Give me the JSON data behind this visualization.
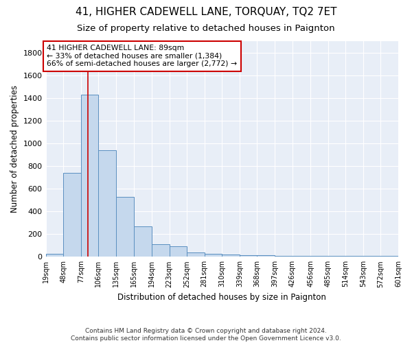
{
  "title": "41, HIGHER CADEWELL LANE, TORQUAY, TQ2 7ET",
  "subtitle": "Size of property relative to detached houses in Paignton",
  "xlabel": "Distribution of detached houses by size in Paignton",
  "ylabel": "Number of detached properties",
  "bin_edges": [
    19,
    48,
    77,
    106,
    135,
    165,
    194,
    223,
    252,
    281,
    310,
    368,
    426,
    514,
    601
  ],
  "tick_labels": [
    "19sqm",
    "48sqm",
    "77sqm",
    "106sqm",
    "135sqm",
    "165sqm",
    "194sqm",
    "223sqm",
    "252sqm",
    "281sqm",
    "310sqm",
    "339sqm",
    "368sqm",
    "397sqm",
    "426sqm",
    "456sqm",
    "485sqm",
    "514sqm",
    "543sqm",
    "572sqm",
    "601sqm"
  ],
  "all_bin_edges": [
    19,
    48,
    77,
    106,
    135,
    165,
    194,
    223,
    252,
    281,
    310,
    339,
    368,
    397,
    426,
    456,
    485,
    514,
    543,
    572,
    601
  ],
  "bar_heights": [
    25,
    740,
    1430,
    940,
    530,
    270,
    110,
    95,
    40,
    25,
    20,
    15,
    15,
    10,
    8,
    8,
    5,
    5,
    5,
    5
  ],
  "bar_color": "#c5d8ed",
  "bar_edge_color": "#5a8fc0",
  "vline_x": 89,
  "vline_color": "#cc0000",
  "annotation_text": "41 HIGHER CADEWELL LANE: 89sqm\n← 33% of detached houses are smaller (1,384)\n66% of semi-detached houses are larger (2,772) →",
  "annotation_box_color": "#ffffff",
  "annotation_box_edge": "#cc0000",
  "ylim": [
    0,
    1900
  ],
  "yticks": [
    0,
    200,
    400,
    600,
    800,
    1000,
    1200,
    1400,
    1600,
    1800
  ],
  "bg_color": "#e8eef7",
  "footer": "Contains HM Land Registry data © Crown copyright and database right 2024.\nContains public sector information licensed under the Open Government Licence v3.0.",
  "title_fontsize": 11,
  "subtitle_fontsize": 9.5
}
